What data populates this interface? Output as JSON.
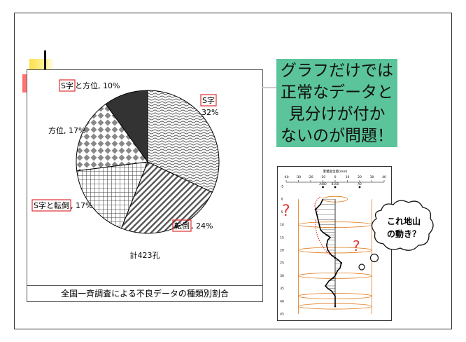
{
  "chart_data": {
    "type": "pie",
    "title": "全国一斉調査による不良データの種類別割合",
    "annotation": "計423孔",
    "slices": [
      {
        "label_boxed": "S字",
        "label_rest": "",
        "value": 32,
        "pattern": "wave"
      },
      {
        "label_boxed": "転倒",
        "label_rest": ", 24%",
        "value": 24,
        "pattern": "diagonal"
      },
      {
        "label_boxed": "S字と転倒",
        "label_rest": ", 17%",
        "value": 17,
        "pattern": "grid"
      },
      {
        "label_boxed": "",
        "label_rest": "方位, 17%",
        "value": 17,
        "pattern": "diamond"
      },
      {
        "label_boxed": "S字",
        "label_rest": "と方位, 10%",
        "value": 10,
        "pattern": "solid"
      }
    ],
    "s_pct_label": "32%"
  },
  "callout": {
    "lines": [
      "グラフだけでは",
      "正常なデータと",
      "見分けが付か",
      "ないのが問題！"
    ],
    "color": "#5bc49a"
  },
  "profile_graph": {
    "title": "累積変位量(mm)",
    "x_ticks": [
      "-40",
      "-30",
      "-20",
      "-10",
      "0",
      "10",
      "20",
      "30",
      "40"
    ],
    "series_labels": [
      "A400",
      "B100",
      "A0"
    ],
    "depth_ticks": [
      "-5",
      "0",
      "5",
      "10",
      "15",
      "20",
      "25",
      "30",
      "35",
      "40",
      "45"
    ],
    "question": "?",
    "bubble_text": [
      "これ地山",
      "の動き？"
    ]
  }
}
